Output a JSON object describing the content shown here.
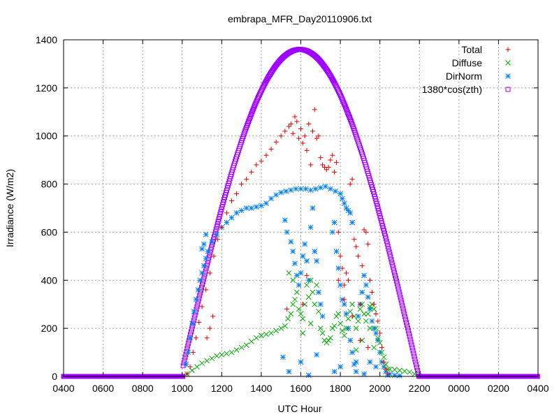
{
  "chart_data": {
    "type": "scatter",
    "title": "embrapa_MFR_Day20110906.txt",
    "xlabel": "UTC Hour",
    "ylabel": "Irradiance (W/m2)",
    "xlim": [
      4,
      28
    ],
    "ylim": [
      0,
      1400
    ],
    "grid": true,
    "legend_position": "top-right",
    "x_ticks": [
      {
        "value": 4,
        "label": "0400"
      },
      {
        "value": 6,
        "label": "0600"
      },
      {
        "value": 8,
        "label": "0800"
      },
      {
        "value": 10,
        "label": "1000"
      },
      {
        "value": 12,
        "label": "1200"
      },
      {
        "value": 14,
        "label": "1400"
      },
      {
        "value": 16,
        "label": "1600"
      },
      {
        "value": 18,
        "label": "1800"
      },
      {
        "value": 20,
        "label": "2000"
      },
      {
        "value": 22,
        "label": "2200"
      },
      {
        "value": 24,
        "label": "0000"
      },
      {
        "value": 26,
        "label": "0200"
      },
      {
        "value": 28,
        "label": "0400"
      }
    ],
    "y_ticks": [
      0,
      200,
      400,
      600,
      800,
      1000,
      1200,
      1400
    ],
    "series": [
      {
        "name": "Total",
        "marker": "plus",
        "color": "#dd0000",
        "points": [
          [
            10.25,
            10
          ],
          [
            10.4,
            40
          ],
          [
            10.55,
            100
          ],
          [
            10.7,
            160
          ],
          [
            10.85,
            225
          ],
          [
            11.0,
            290
          ],
          [
            11.2,
            360
          ],
          [
            11.4,
            430
          ],
          [
            11.6,
            500
          ],
          [
            11.8,
            570
          ],
          [
            12.0,
            620
          ],
          [
            12.25,
            680
          ],
          [
            12.5,
            730
          ],
          [
            12.75,
            760
          ],
          [
            13.0,
            800
          ],
          [
            13.25,
            820
          ],
          [
            13.5,
            850
          ],
          [
            13.75,
            880
          ],
          [
            14.0,
            895
          ],
          [
            14.25,
            920
          ],
          [
            14.5,
            945
          ],
          [
            14.75,
            975
          ],
          [
            15.0,
            1000
          ],
          [
            15.2,
            1020
          ],
          [
            15.4,
            1040
          ],
          [
            15.5,
            1050
          ],
          [
            15.6,
            1010
          ],
          [
            15.7,
            1080
          ],
          [
            15.8,
            1060
          ],
          [
            15.9,
            990
          ],
          [
            16.0,
            1030
          ],
          [
            16.1,
            970
          ],
          [
            16.2,
            1000
          ],
          [
            16.3,
            940
          ],
          [
            16.4,
            1050
          ],
          [
            16.5,
            880
          ],
          [
            16.6,
            1020
          ],
          [
            16.7,
            1110
          ],
          [
            16.8,
            990
          ],
          [
            16.9,
            1000
          ],
          [
            17.0,
            910
          ],
          [
            17.1,
            880
          ],
          [
            17.2,
            870
          ],
          [
            17.3,
            860
          ],
          [
            17.4,
            870
          ],
          [
            17.5,
            900
          ],
          [
            17.6,
            920
          ],
          [
            17.7,
            850
          ],
          [
            17.8,
            890
          ],
          [
            17.9,
            600
          ],
          [
            18.0,
            500
          ],
          [
            18.1,
            450
          ],
          [
            18.2,
            380
          ],
          [
            18.3,
            430
          ],
          [
            18.4,
            400
          ],
          [
            18.5,
            800
          ],
          [
            18.6,
            820
          ],
          [
            18.7,
            570
          ],
          [
            18.8,
            540
          ],
          [
            18.9,
            500
          ],
          [
            19.0,
            300
          ],
          [
            19.1,
            460
          ],
          [
            19.2,
            610
          ],
          [
            19.3,
            600
          ],
          [
            19.4,
            550
          ],
          [
            19.5,
            400
          ],
          [
            19.6,
            350
          ],
          [
            19.7,
            300
          ],
          [
            19.8,
            260
          ],
          [
            19.9,
            230
          ],
          [
            20.0,
            180
          ],
          [
            20.1,
            120
          ],
          [
            20.2,
            60
          ],
          [
            20.3,
            30
          ],
          [
            20.4,
            10
          ],
          [
            11.25,
            160
          ],
          [
            11.4,
            200
          ],
          [
            11.55,
            250
          ],
          [
            15.3,
            280
          ],
          [
            16.1,
            300
          ],
          [
            16.3,
            420
          ],
          [
            17.9,
            400
          ],
          [
            18.2,
            320
          ],
          [
            18.6,
            250
          ],
          [
            19.0,
            150
          ],
          [
            19.4,
            120
          ]
        ]
      },
      {
        "name": "Diffuse",
        "marker": "cross",
        "color": "#00aa00",
        "points": [
          [
            10.25,
            10
          ],
          [
            10.5,
            25
          ],
          [
            10.75,
            40
          ],
          [
            11.0,
            55
          ],
          [
            11.25,
            65
          ],
          [
            11.5,
            75
          ],
          [
            11.75,
            85
          ],
          [
            12.0,
            90
          ],
          [
            12.25,
            95
          ],
          [
            12.5,
            100
          ],
          [
            12.75,
            110
          ],
          [
            13.0,
            120
          ],
          [
            13.25,
            130
          ],
          [
            13.5,
            145
          ],
          [
            13.75,
            160
          ],
          [
            14.0,
            170
          ],
          [
            14.25,
            175
          ],
          [
            14.5,
            180
          ],
          [
            14.75,
            190
          ],
          [
            15.0,
            200
          ],
          [
            15.2,
            210
          ],
          [
            15.35,
            240
          ],
          [
            15.5,
            260
          ],
          [
            15.6,
            300
          ],
          [
            15.7,
            320
          ],
          [
            15.8,
            350
          ],
          [
            15.9,
            280
          ],
          [
            16.0,
            260
          ],
          [
            16.1,
            240
          ],
          [
            16.2,
            300
          ],
          [
            16.3,
            380
          ],
          [
            16.4,
            330
          ],
          [
            16.5,
            400
          ],
          [
            16.6,
            350
          ],
          [
            16.7,
            300
          ],
          [
            16.8,
            380
          ],
          [
            16.9,
            270
          ],
          [
            17.0,
            200
          ],
          [
            17.1,
            180
          ],
          [
            17.2,
            150
          ],
          [
            17.3,
            140
          ],
          [
            17.4,
            150
          ],
          [
            17.5,
            160
          ],
          [
            17.6,
            200
          ],
          [
            17.7,
            210
          ],
          [
            17.8,
            250
          ],
          [
            17.9,
            260
          ],
          [
            18.0,
            220
          ],
          [
            18.1,
            190
          ],
          [
            18.2,
            170
          ],
          [
            18.3,
            200
          ],
          [
            18.4,
            240
          ],
          [
            18.5,
            270
          ],
          [
            18.6,
            300
          ],
          [
            18.7,
            250
          ],
          [
            18.8,
            200
          ],
          [
            18.9,
            230
          ],
          [
            19.0,
            280
          ],
          [
            19.1,
            300
          ],
          [
            19.2,
            260
          ],
          [
            19.3,
            230
          ],
          [
            19.4,
            260
          ],
          [
            19.5,
            290
          ],
          [
            19.6,
            300
          ],
          [
            19.7,
            280
          ],
          [
            19.8,
            200
          ],
          [
            19.9,
            160
          ],
          [
            20.0,
            140
          ],
          [
            20.1,
            100
          ],
          [
            20.2,
            80
          ],
          [
            20.3,
            50
          ],
          [
            20.4,
            30
          ],
          [
            20.5,
            30
          ],
          [
            20.75,
            28
          ],
          [
            21.0,
            25
          ],
          [
            21.25,
            22
          ],
          [
            21.5,
            18
          ],
          [
            21.75,
            10
          ],
          [
            15.4,
            430
          ],
          [
            15.6,
            400
          ],
          [
            16.1,
            180
          ],
          [
            16.5,
            220
          ],
          [
            18.8,
            110
          ],
          [
            19.1,
            150
          ],
          [
            19.5,
            200
          ],
          [
            19.7,
            120
          ]
        ]
      },
      {
        "name": "DirNorm",
        "marker": "star",
        "color": "#0080ff",
        "points": [
          [
            10.2,
            50
          ],
          [
            10.3,
            100
          ],
          [
            10.4,
            160
          ],
          [
            10.5,
            220
          ],
          [
            10.6,
            270
          ],
          [
            10.7,
            320
          ],
          [
            10.8,
            360
          ],
          [
            10.9,
            400
          ],
          [
            11.0,
            430
          ],
          [
            11.1,
            460
          ],
          [
            11.2,
            490
          ],
          [
            11.3,
            520
          ],
          [
            11.5,
            560
          ],
          [
            11.75,
            590
          ],
          [
            12.0,
            620
          ],
          [
            12.25,
            640
          ],
          [
            12.5,
            660
          ],
          [
            12.75,
            680
          ],
          [
            13.0,
            690
          ],
          [
            13.25,
            700
          ],
          [
            13.5,
            700
          ],
          [
            13.75,
            705
          ],
          [
            14.0,
            710
          ],
          [
            14.25,
            720
          ],
          [
            14.5,
            740
          ],
          [
            14.75,
            755
          ],
          [
            15.0,
            765
          ],
          [
            15.25,
            770
          ],
          [
            15.5,
            775
          ],
          [
            15.75,
            780
          ],
          [
            16.0,
            780
          ],
          [
            16.25,
            780
          ],
          [
            16.5,
            775
          ],
          [
            16.75,
            780
          ],
          [
            17.0,
            785
          ],
          [
            17.25,
            790
          ],
          [
            17.5,
            780
          ],
          [
            17.75,
            770
          ],
          [
            18.0,
            760
          ],
          [
            18.1,
            740
          ],
          [
            18.2,
            720
          ],
          [
            18.3,
            700
          ],
          [
            18.4,
            690
          ],
          [
            18.5,
            680
          ],
          [
            18.6,
            640
          ],
          [
            11.0,
            530
          ],
          [
            11.1,
            550
          ],
          [
            11.2,
            590
          ],
          [
            15.2,
            650
          ],
          [
            15.3,
            600
          ],
          [
            15.5,
            560
          ],
          [
            15.6,
            520
          ],
          [
            15.7,
            470
          ],
          [
            15.8,
            420
          ],
          [
            15.9,
            380
          ],
          [
            16.0,
            430
          ],
          [
            16.1,
            500
          ],
          [
            16.2,
            550
          ],
          [
            16.3,
            480
          ],
          [
            16.4,
            400
          ],
          [
            16.5,
            620
          ],
          [
            16.6,
            700
          ],
          [
            16.7,
            520
          ],
          [
            16.8,
            480
          ],
          [
            16.9,
            350
          ],
          [
            17.0,
            300
          ],
          [
            17.1,
            250
          ],
          [
            17.6,
            600
          ],
          [
            17.7,
            640
          ],
          [
            17.8,
            520
          ],
          [
            17.9,
            450
          ],
          [
            18.0,
            380
          ],
          [
            18.1,
            320
          ],
          [
            18.2,
            300
          ],
          [
            18.3,
            260
          ],
          [
            18.4,
            200
          ],
          [
            18.5,
            150
          ],
          [
            18.6,
            100
          ],
          [
            18.7,
            50
          ],
          [
            18.8,
            20
          ],
          [
            18.9,
            250
          ],
          [
            19.0,
            300
          ],
          [
            19.1,
            350
          ],
          [
            19.2,
            420
          ],
          [
            19.3,
            380
          ],
          [
            19.4,
            330
          ],
          [
            19.5,
            280
          ],
          [
            19.6,
            230
          ],
          [
            19.7,
            200
          ],
          [
            19.8,
            180
          ],
          [
            19.9,
            150
          ],
          [
            20.0,
            100
          ],
          [
            20.1,
            60
          ],
          [
            20.2,
            40
          ],
          [
            20.3,
            20
          ],
          [
            20.5,
            10
          ],
          [
            20.75,
            5
          ],
          [
            21.0,
            3
          ],
          [
            15.1,
            80
          ],
          [
            15.4,
            20
          ],
          [
            16.0,
            60
          ],
          [
            16.4,
            5
          ],
          [
            16.8,
            90
          ],
          [
            17.7,
            20
          ],
          [
            18.0,
            40
          ],
          [
            18.8,
            60
          ],
          [
            19.2,
            10
          ],
          [
            19.5,
            60
          ],
          [
            19.8,
            40
          ],
          [
            20.4,
            5
          ]
        ]
      },
      {
        "name": "1380*cos(zth)",
        "marker": "square",
        "color": "#a000ff",
        "curve": {
          "x_start": 10.05,
          "x_end": 22.1,
          "x_peak": 15.95,
          "peak_value": 1360,
          "step_hours": 0.0333
        },
        "baseline": {
          "value": 0,
          "x_start": 4.0,
          "x_end": 28.0
        }
      }
    ]
  }
}
